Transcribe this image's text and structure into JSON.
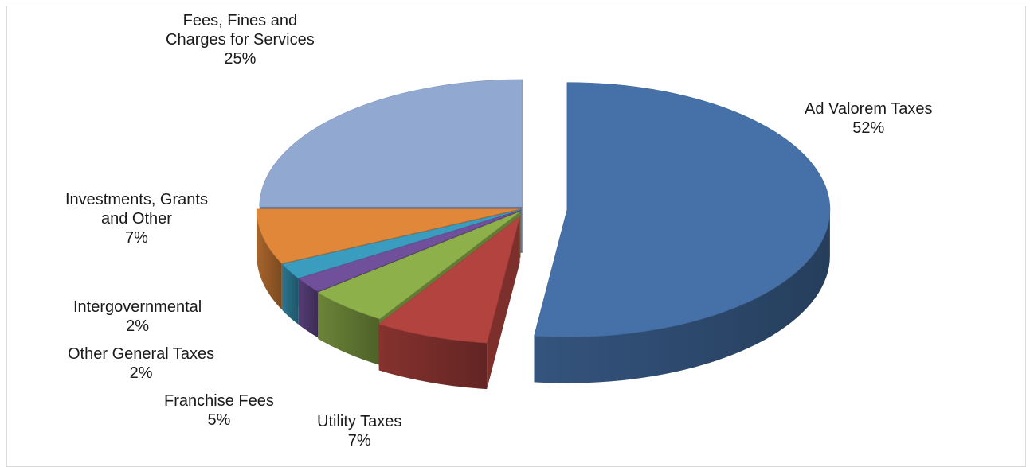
{
  "chart_data": {
    "type": "pie",
    "style": "3d-exploded",
    "slices": [
      {
        "name": "Ad Valorem Taxes",
        "value": 52,
        "label": "52%",
        "color": "#4570a8"
      },
      {
        "name": "Utility Taxes",
        "value": 7,
        "label": "7%",
        "color": "#b3433f"
      },
      {
        "name": "Franchise Fees",
        "value": 5,
        "label": "5%",
        "color": "#8eb04a"
      },
      {
        "name": "Other General Taxes",
        "value": 2,
        "label": "2%",
        "color": "#70509a"
      },
      {
        "name": "Intergovernmental",
        "value": 2,
        "label": "2%",
        "color": "#3a9cbf"
      },
      {
        "name": "Investments, Grants and Other",
        "value": 7,
        "label": "7%",
        "color": "#e0873a"
      },
      {
        "name": "Fees, Fines and Charges for Services",
        "value": 25,
        "label": "25%",
        "color": "#91a8d0"
      }
    ],
    "label_lines": {
      "ad_valorem": [
        "Ad Valorem Taxes",
        "52%"
      ],
      "utility": [
        "Utility Taxes",
        "7%"
      ],
      "franchise": [
        "Franchise Fees",
        "5%"
      ],
      "other_general": [
        "Other General Taxes",
        "2%"
      ],
      "intergov": [
        "Intergovernmental",
        "2%"
      ],
      "investments": [
        "Investments, Grants",
        "and Other",
        "7%"
      ],
      "fees": [
        "Fees, Fines and",
        "Charges for Services",
        "25%"
      ]
    }
  }
}
